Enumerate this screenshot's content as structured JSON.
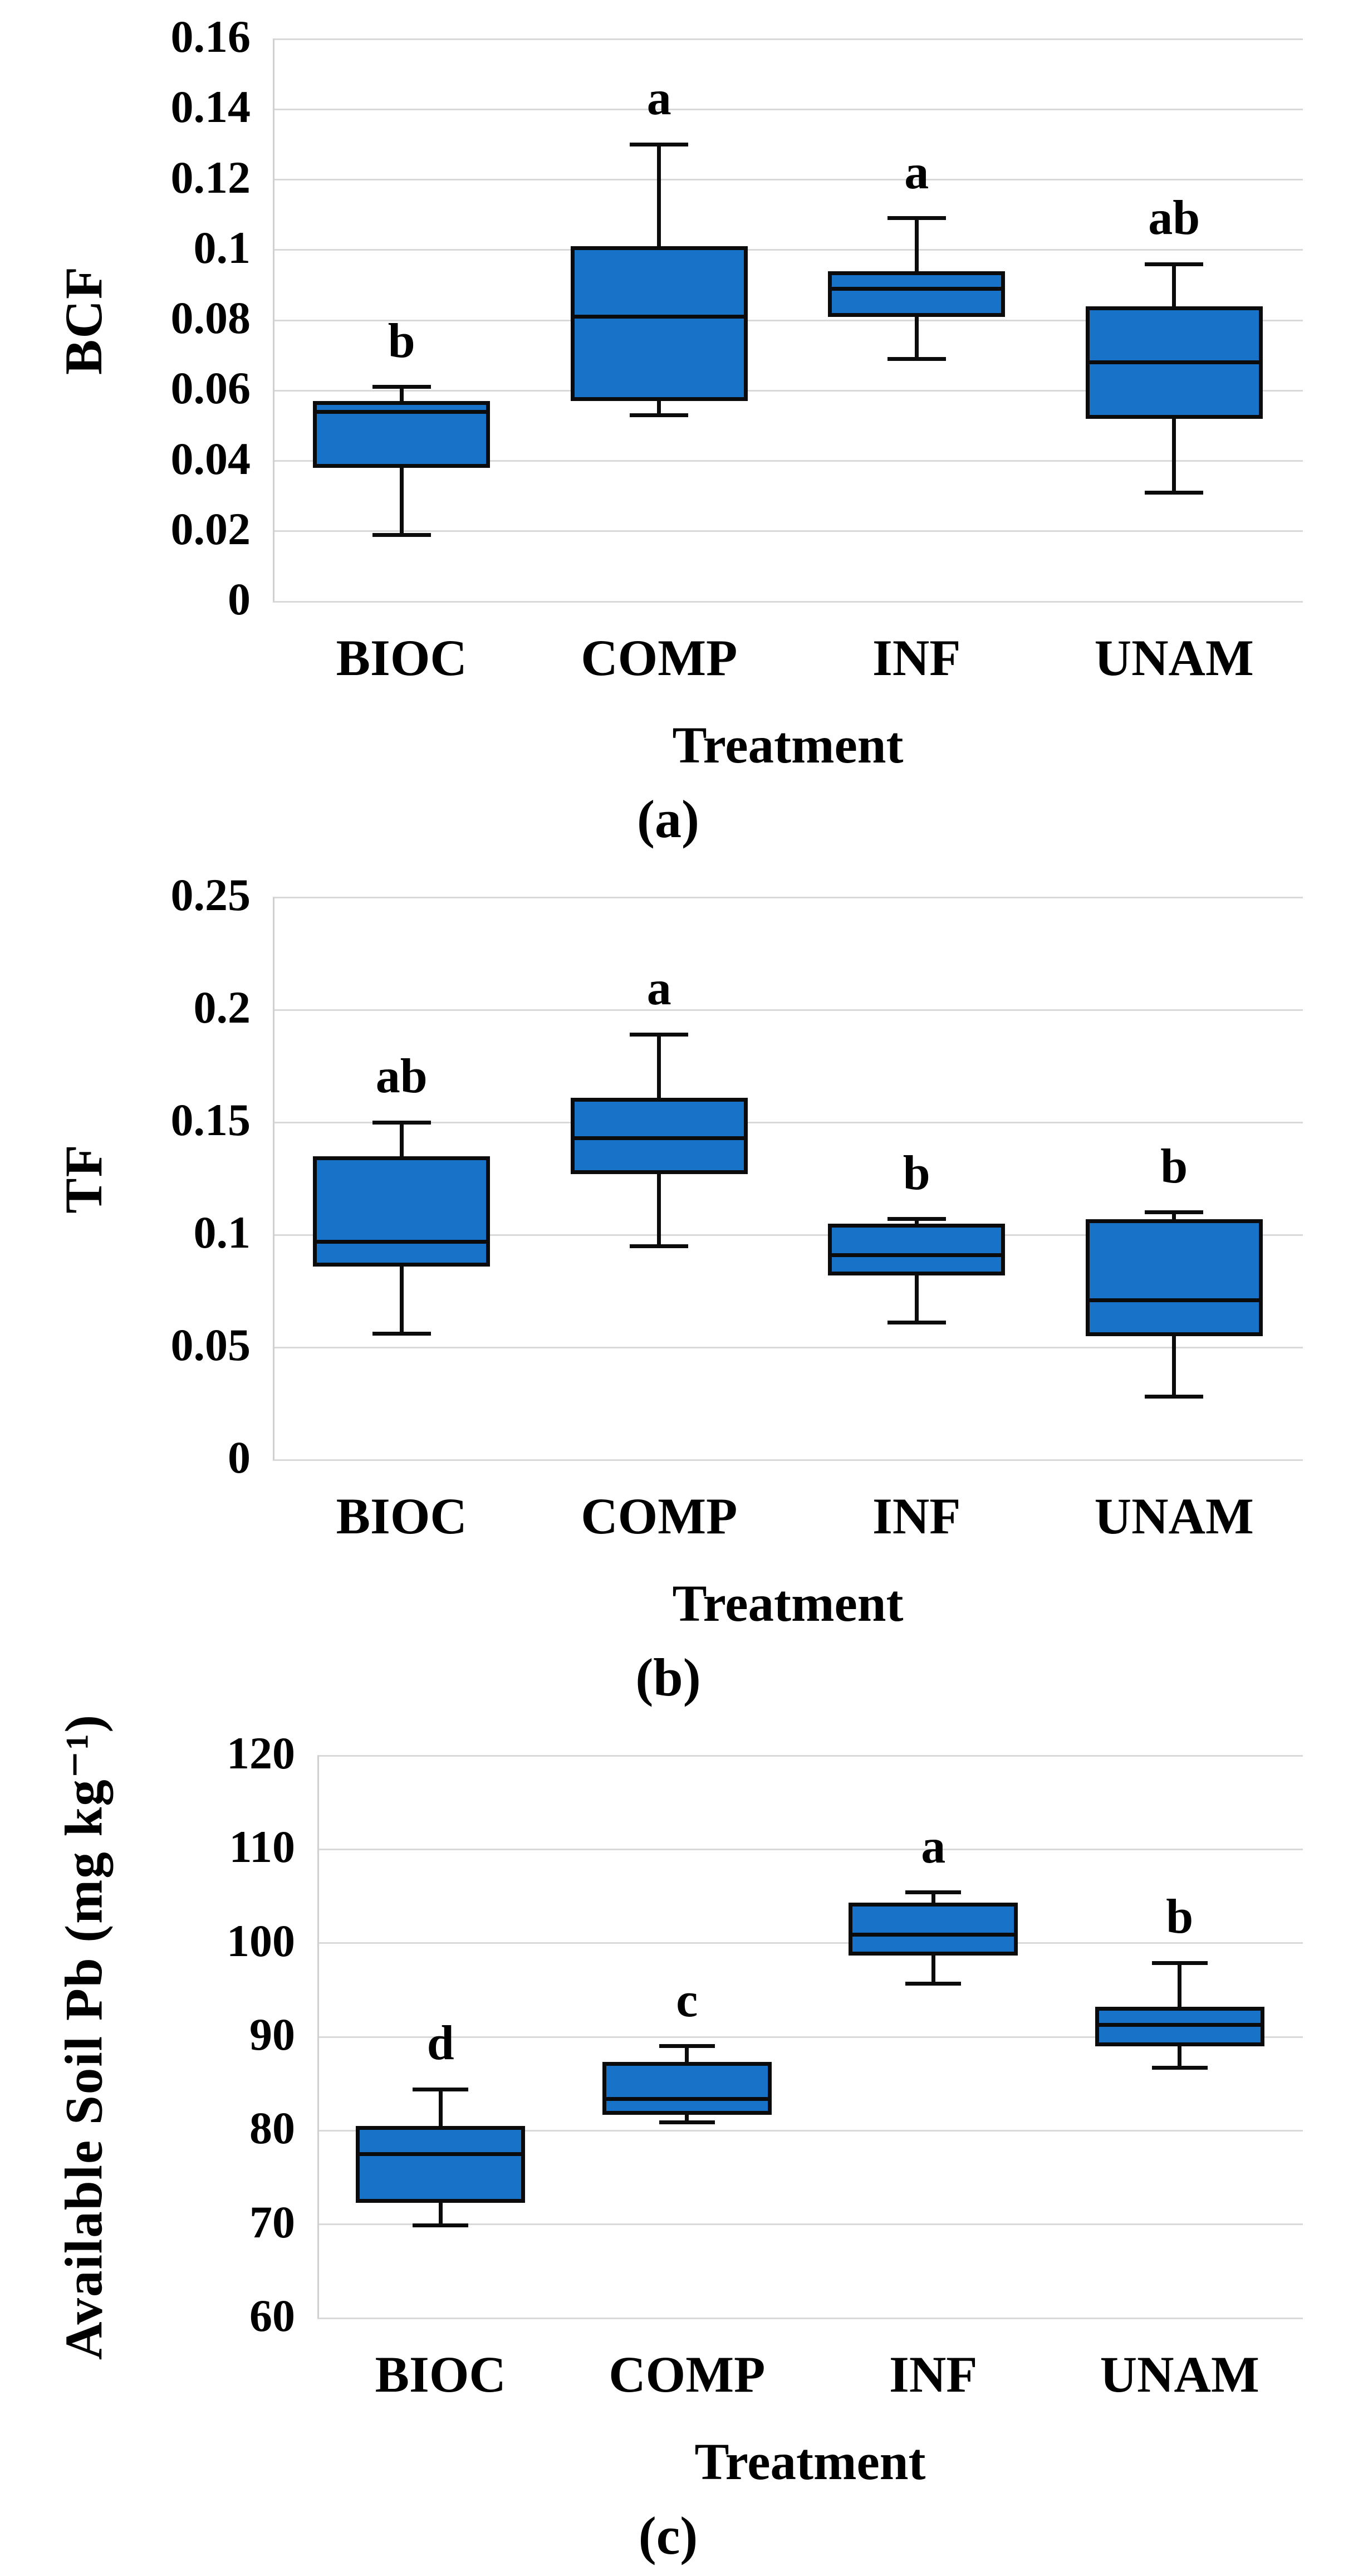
{
  "styles": {
    "box_fill": "#1772C8",
    "box_border": "#0B0B0B",
    "gridline_color": "#D9D9D9",
    "axis_line_color": "#D0D0D0",
    "text_color": "#000000"
  },
  "chart_data": [
    {
      "type": "box",
      "panel": "a",
      "caption": "(a)",
      "xlabel": "Treatment",
      "ylabel": "BCF",
      "ylim": [
        0,
        0.16
      ],
      "grid": true,
      "legend": null,
      "ytick_values": [
        0.16,
        0.14,
        0.12,
        0.1,
        0.08,
        0.06,
        0.04,
        0.02,
        0
      ],
      "ytick_labels": [
        "0.16",
        "0.14",
        "0.12",
        "0.1",
        "0.08",
        "0.06",
        "0.04",
        "0.02",
        "0"
      ],
      "categories": [
        "BIOC",
        "COMP",
        "INF",
        "UNAM"
      ],
      "series": [
        {
          "category": "BIOC",
          "min": 0.019,
          "q1": 0.038,
          "median": 0.054,
          "q3": 0.057,
          "max": 0.061,
          "sig_letter": "b"
        },
        {
          "category": "COMP",
          "min": 0.053,
          "q1": 0.057,
          "median": 0.081,
          "q3": 0.101,
          "max": 0.13,
          "sig_letter": "a"
        },
        {
          "category": "INF",
          "min": 0.069,
          "q1": 0.081,
          "median": 0.089,
          "q3": 0.094,
          "max": 0.109,
          "sig_letter": "a"
        },
        {
          "category": "UNAM",
          "min": 0.031,
          "q1": 0.052,
          "median": 0.068,
          "q3": 0.084,
          "max": 0.096,
          "sig_letter": "ab"
        }
      ]
    },
    {
      "type": "box",
      "panel": "b",
      "caption": "(b)",
      "xlabel": "Treatment",
      "ylabel": "TF",
      "ylim": [
        0,
        0.25
      ],
      "grid": true,
      "legend": null,
      "ytick_values": [
        0.25,
        0.2,
        0.15,
        0.1,
        0.05,
        0
      ],
      "ytick_labels": [
        "0.25",
        "0.2",
        "0.15",
        "0.1",
        "0.05",
        "0"
      ],
      "categories": [
        "BIOC",
        "COMP",
        "INF",
        "UNAM"
      ],
      "series": [
        {
          "category": "BIOC",
          "min": 0.056,
          "q1": 0.086,
          "median": 0.097,
          "q3": 0.135,
          "max": 0.15,
          "sig_letter": "ab"
        },
        {
          "category": "COMP",
          "min": 0.095,
          "q1": 0.127,
          "median": 0.143,
          "q3": 0.161,
          "max": 0.189,
          "sig_letter": "a"
        },
        {
          "category": "INF",
          "min": 0.061,
          "q1": 0.082,
          "median": 0.091,
          "q3": 0.105,
          "max": 0.107,
          "sig_letter": "b"
        },
        {
          "category": "UNAM",
          "min": 0.028,
          "q1": 0.055,
          "median": 0.071,
          "q3": 0.107,
          "max": 0.11,
          "sig_letter": "b"
        }
      ]
    },
    {
      "type": "box",
      "panel": "c",
      "caption": "(c)",
      "xlabel": "Treatment",
      "ylabel": "Available Soil Pb (mg kg⁻¹)",
      "ylim": [
        60,
        120
      ],
      "grid": true,
      "legend": null,
      "ytick_values": [
        120,
        110,
        100,
        90,
        80,
        70,
        60
      ],
      "ytick_labels": [
        "120",
        "110",
        "100",
        "90",
        "80",
        "70",
        "60"
      ],
      "categories": [
        "BIOC",
        "COMP",
        "INF",
        "UNAM"
      ],
      "series": [
        {
          "category": "BIOC",
          "min": 69.9,
          "q1": 72.3,
          "median": 77.5,
          "q3": 80.5,
          "max": 84.4,
          "sig_letter": "d"
        },
        {
          "category": "COMP",
          "min": 80.9,
          "q1": 81.7,
          "median": 83.4,
          "q3": 87.3,
          "max": 89.0,
          "sig_letter": "c"
        },
        {
          "category": "INF",
          "min": 95.7,
          "q1": 98.7,
          "median": 100.9,
          "q3": 104.3,
          "max": 105.4,
          "sig_letter": "a"
        },
        {
          "category": "UNAM",
          "min": 86.7,
          "q1": 89.0,
          "median": 91.3,
          "q3": 93.2,
          "max": 97.9,
          "sig_letter": "b"
        }
      ]
    }
  ]
}
